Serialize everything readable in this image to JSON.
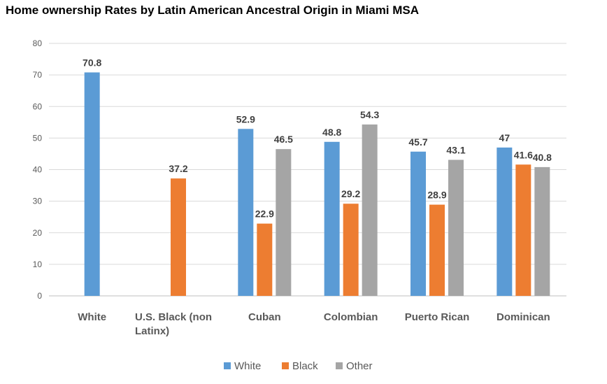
{
  "chart_data": {
    "type": "bar",
    "title": "Home ownership Rates by Latin American Ancestral Origin in Miami MSA",
    "categories": [
      [
        "White"
      ],
      [
        "U.S. Black (non",
        "Latinx)"
      ],
      [
        "Cuban"
      ],
      [
        "Colombian"
      ],
      [
        "Puerto Rican"
      ],
      [
        "Dominican"
      ]
    ],
    "series": [
      {
        "name": "White",
        "color": "#5B9BD5",
        "values": [
          70.8,
          null,
          52.9,
          48.8,
          45.7,
          47
        ]
      },
      {
        "name": "Black",
        "color": "#ED7D31",
        "values": [
          null,
          37.2,
          22.9,
          29.2,
          28.9,
          41.6
        ]
      },
      {
        "name": "Other",
        "color": "#A5A5A5",
        "values": [
          null,
          null,
          46.5,
          54.3,
          43.1,
          40.8
        ]
      }
    ],
    "data_labels": [
      [
        "70.8",
        null,
        null
      ],
      [
        null,
        "37.2",
        null
      ],
      [
        "52.9",
        "22.9",
        "46.5"
      ],
      [
        "48.8",
        "29.2",
        "54.3"
      ],
      [
        "45.7",
        "28.9",
        "43.1"
      ],
      [
        "47",
        "41.6",
        "40.8"
      ]
    ],
    "y_ticks": [
      0,
      10,
      20,
      30,
      40,
      50,
      60,
      70,
      80
    ],
    "ylim": [
      0,
      80
    ],
    "grid": true,
    "legend_position": "bottom",
    "xlabel": "",
    "ylabel": ""
  }
}
